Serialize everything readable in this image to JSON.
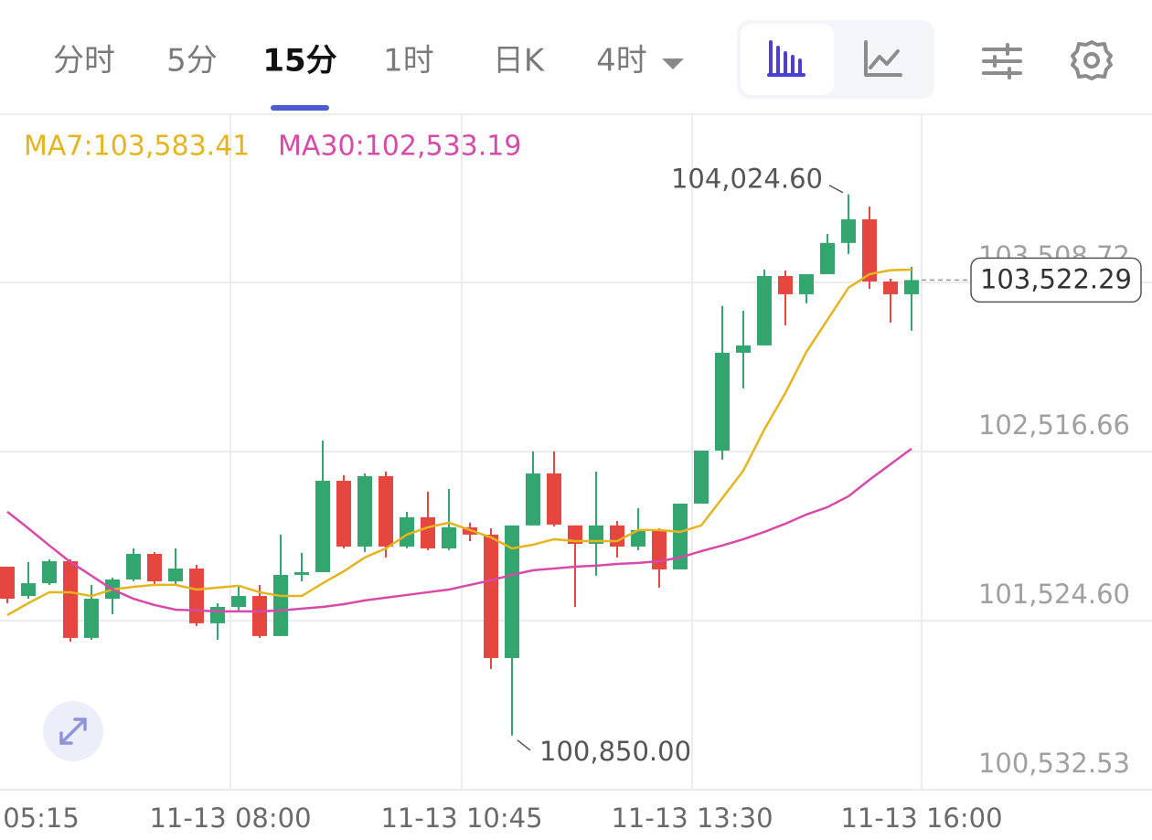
{
  "toolbar": {
    "tabs": [
      "分时",
      "5分",
      "15分",
      "1时",
      "日K",
      "4时"
    ],
    "active": 2
  },
  "chart_data": {
    "type": "candlestick",
    "legend": [
      "MA7:103,583.41",
      "MA30:102,533.19"
    ],
    "x_labels": [
      "05:15",
      "11-13 08:00",
      "11-13 10:45",
      "11-13 13:30",
      "11-13 16:00"
    ],
    "up_color": "#33a56e",
    "down_color": "#e5463f",
    "open": [
      101841,
      101669,
      101744,
      101873,
      101423,
      101653,
      101766,
      101916,
      101755,
      101830,
      101509,
      101605,
      101669,
      101434,
      101793,
      101809,
      102345,
      101959,
      102372,
      101959,
      102131,
      101948,
      102072,
      102029,
      101305,
      102083,
      102388,
      102083,
      101975,
      102083,
      101959,
      102056,
      101825,
      102211,
      102522,
      103096,
      103139,
      103546,
      103439,
      103557,
      103740,
      103879,
      103514,
      103439
    ],
    "high": [
      101841,
      101868,
      101884,
      101884,
      101734,
      101777,
      101948,
      101927,
      101948,
      101852,
      101627,
      101734,
      101734,
      102029,
      101922,
      102581,
      102378,
      102388,
      102399,
      102163,
      102281,
      102297,
      102099,
      102066,
      102083,
      102517,
      102517,
      102083,
      102399,
      102109,
      102184,
      102066,
      102211,
      102522,
      103370,
      103343,
      103584,
      103579,
      103557,
      103793,
      104024.6,
      103954,
      103530,
      103600
    ],
    "low": [
      101627,
      101653,
      101734,
      101401,
      101412,
      101562,
      101755,
      101734,
      101734,
      101493,
      101412,
      101584,
      101423,
      101434,
      101755,
      101809,
      101948,
      101927,
      101895,
      101948,
      101938,
      101938,
      101991,
      101241,
      100850,
      102083,
      102077,
      101605,
      101788,
      101895,
      101938,
      101718,
      101825,
      102211,
      102469,
      102887,
      103139,
      103257,
      103386,
      103557,
      103675,
      103471,
      103273,
      103225
    ],
    "close": [
      101653,
      101744,
      101873,
      101423,
      101653,
      101766,
      101916,
      101755,
      101830,
      101509,
      101605,
      101669,
      101434,
      101793,
      101809,
      102345,
      101959,
      102372,
      101959,
      102131,
      101948,
      102072,
      102029,
      101305,
      102083,
      102388,
      102088,
      101975,
      102083,
      101959,
      102056,
      101825,
      102211,
      102522,
      103096,
      103139,
      103546,
      103439,
      103557,
      103740,
      103879,
      103514,
      103439,
      103522.29
    ],
    "moving_averages": [
      {
        "label": "MA7",
        "color": "#e6b41e",
        "values": [
          101557,
          101627,
          101691,
          101691,
          101669,
          101707,
          101723,
          101734,
          101734,
          101707,
          101718,
          101729,
          101691,
          101669,
          101669,
          101744,
          101814,
          101895,
          101948,
          102029,
          102072,
          102099,
          102056,
          102013,
          101948,
          101970,
          102002,
          101991,
          101991,
          101991,
          102056,
          102056,
          102045,
          102083,
          102243,
          102404,
          102646,
          102860,
          103101,
          103289,
          103477,
          103557,
          103580,
          103583.41
        ]
      },
      {
        "label": "MA30",
        "color": "#d84aa9",
        "values": [
          102163,
          102066,
          101965,
          101868,
          101788,
          101707,
          101653,
          101616,
          101589,
          101584,
          101579,
          101579,
          101579,
          101584,
          101595,
          101605,
          101621,
          101643,
          101659,
          101675,
          101691,
          101707,
          101734,
          101761,
          101793,
          101820,
          101830,
          101841,
          101847,
          101857,
          101863,
          101873,
          101895,
          101932,
          101965,
          102002,
          102045,
          102093,
          102147,
          102190,
          102254,
          102351,
          102442,
          102533.19
        ]
      }
    ],
    "ylim": [
      100532.53,
      104495
    ],
    "yticks": [
      {
        "value": 100532.53,
        "label": "100,532.53"
      },
      {
        "value": 101524.6,
        "label": "101,524.60"
      },
      {
        "value": 102516.66,
        "label": "102,516.66"
      },
      {
        "value": 103508.72,
        "label": "103,508.72"
      }
    ],
    "grid": true,
    "high_annotation": {
      "value": 104024.6,
      "label": "104,024.60"
    },
    "low_annotation": {
      "value": 100850,
      "label": "100,850.00"
    },
    "last_price": {
      "value": 103522.29,
      "label": "103,522.29"
    }
  }
}
